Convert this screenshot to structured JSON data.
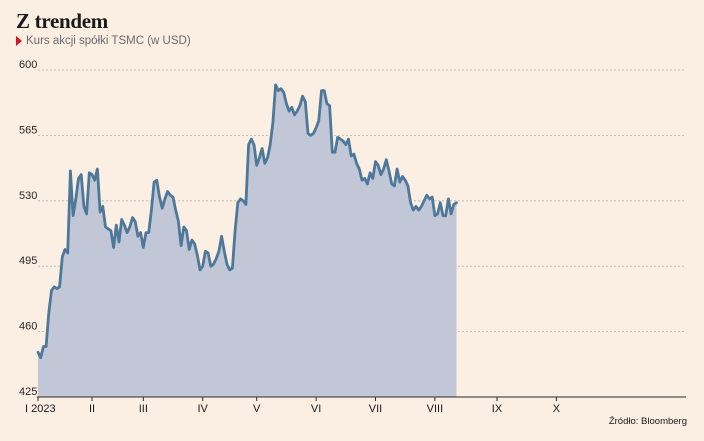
{
  "title": "Z trendem",
  "subtitle": "Kurs akcji spółki TSMC (w USD)",
  "source": "Źródło: Bloomberg",
  "colors": {
    "background": "#fbeee2",
    "line": "#4e7899",
    "area": "#c2c7d8",
    "accent_marker": "#d6171d"
  },
  "chart_data": {
    "type": "area",
    "title": "Z trendem",
    "subtitle": "Kurs akcji spółki TSMC (w USD)",
    "xlabel": "",
    "ylabel": "",
    "ylim": [
      425,
      600
    ],
    "yticks": [
      425,
      460,
      495,
      530,
      565,
      600
    ],
    "grid": "horizontal dashed",
    "x_index_range": [
      0,
      240
    ],
    "xticks": [
      {
        "label": "I 2023",
        "index": 0
      },
      {
        "label": "II",
        "index": 20
      },
      {
        "label": "III",
        "index": 39
      },
      {
        "label": "IV",
        "index": 61
      },
      {
        "label": "V",
        "index": 81
      },
      {
        "label": "VI",
        "index": 103
      },
      {
        "label": "VII",
        "index": 125
      },
      {
        "label": "VIII",
        "index": 147
      },
      {
        "label": "IX",
        "index": 170
      },
      {
        "label": "X",
        "index": 192
      }
    ],
    "series": [
      {
        "values": [
          [
            0,
            449
          ],
          [
            1,
            446
          ],
          [
            2,
            452
          ],
          [
            3,
            452
          ],
          [
            4,
            470
          ],
          [
            5,
            482
          ],
          [
            6,
            484
          ],
          [
            7,
            483
          ],
          [
            8,
            484
          ],
          [
            9,
            500
          ],
          [
            10,
            504
          ],
          [
            11,
            502
          ],
          [
            12,
            546
          ],
          [
            13,
            522
          ],
          [
            14,
            531
          ],
          [
            15,
            542
          ],
          [
            16,
            544
          ],
          [
            17,
            527
          ],
          [
            18,
            523
          ],
          [
            19,
            545
          ],
          [
            20,
            544
          ],
          [
            21,
            541
          ],
          [
            22,
            547
          ],
          [
            23,
            524
          ],
          [
            24,
            527
          ],
          [
            25,
            516
          ],
          [
            26,
            515
          ],
          [
            27,
            514
          ],
          [
            28,
            505
          ],
          [
            29,
            517
          ],
          [
            30,
            508
          ],
          [
            31,
            520
          ],
          [
            32,
            517
          ],
          [
            33,
            513
          ],
          [
            34,
            516
          ],
          [
            35,
            521
          ],
          [
            36,
            519
          ],
          [
            37,
            511
          ],
          [
            38,
            513
          ],
          [
            39,
            505
          ],
          [
            40,
            513
          ],
          [
            41,
            513
          ],
          [
            42,
            525
          ],
          [
            43,
            540
          ],
          [
            44,
            541
          ],
          [
            45,
            532
          ],
          [
            46,
            526
          ],
          [
            47,
            531
          ],
          [
            48,
            535
          ],
          [
            49,
            533
          ],
          [
            50,
            532
          ],
          [
            51,
            525
          ],
          [
            52,
            519
          ],
          [
            53,
            506
          ],
          [
            54,
            516
          ],
          [
            55,
            514
          ],
          [
            56,
            504
          ],
          [
            57,
            509
          ],
          [
            58,
            507
          ],
          [
            59,
            501
          ],
          [
            60,
            493
          ],
          [
            61,
            495
          ],
          [
            62,
            503
          ],
          [
            63,
            502
          ],
          [
            64,
            495
          ],
          [
            65,
            496
          ],
          [
            66,
            499
          ],
          [
            67,
            503
          ],
          [
            68,
            511
          ],
          [
            69,
            503
          ],
          [
            70,
            496
          ],
          [
            71,
            493
          ],
          [
            72,
            494
          ],
          [
            73,
            514
          ],
          [
            74,
            529
          ],
          [
            75,
            531
          ],
          [
            76,
            530
          ],
          [
            77,
            528
          ],
          [
            78,
            560
          ],
          [
            79,
            563
          ],
          [
            80,
            560
          ],
          [
            81,
            549
          ],
          [
            82,
            553
          ],
          [
            83,
            558
          ],
          [
            84,
            550
          ],
          [
            85,
            553
          ],
          [
            86,
            560
          ],
          [
            87,
            572
          ],
          [
            88,
            592
          ],
          [
            89,
            589
          ],
          [
            90,
            590
          ],
          [
            91,
            588
          ],
          [
            92,
            582
          ],
          [
            93,
            578
          ],
          [
            94,
            580
          ],
          [
            95,
            576
          ],
          [
            96,
            578
          ],
          [
            97,
            581
          ],
          [
            98,
            586
          ],
          [
            99,
            583
          ],
          [
            100,
            566
          ],
          [
            101,
            565
          ],
          [
            102,
            566
          ],
          [
            103,
            569
          ],
          [
            104,
            573
          ],
          [
            105,
            589
          ],
          [
            106,
            589
          ],
          [
            107,
            582
          ],
          [
            108,
            581
          ],
          [
            109,
            556
          ],
          [
            110,
            556
          ],
          [
            111,
            564
          ],
          [
            112,
            563
          ],
          [
            113,
            562
          ],
          [
            114,
            560
          ],
          [
            115,
            563
          ],
          [
            116,
            554
          ],
          [
            117,
            555
          ],
          [
            118,
            550
          ],
          [
            119,
            547
          ],
          [
            120,
            541
          ],
          [
            121,
            542
          ],
          [
            122,
            539
          ],
          [
            123,
            545
          ],
          [
            124,
            542
          ],
          [
            125,
            551
          ],
          [
            126,
            549
          ],
          [
            127,
            544
          ],
          [
            128,
            547
          ],
          [
            129,
            552
          ],
          [
            130,
            546
          ],
          [
            131,
            539
          ],
          [
            132,
            538
          ],
          [
            133,
            547
          ],
          [
            134,
            540
          ],
          [
            135,
            543
          ],
          [
            136,
            541
          ],
          [
            137,
            538
          ],
          [
            138,
            529
          ],
          [
            139,
            525
          ],
          [
            140,
            527
          ],
          [
            141,
            525
          ],
          [
            142,
            527
          ],
          [
            143,
            530
          ],
          [
            144,
            533
          ],
          [
            145,
            531
          ],
          [
            146,
            532
          ],
          [
            147,
            522
          ],
          [
            148,
            523
          ],
          [
            149,
            529
          ],
          [
            150,
            522
          ],
          [
            151,
            522
          ],
          [
            152,
            531
          ],
          [
            153,
            523
          ],
          [
            154,
            528
          ],
          [
            155,
            529
          ]
        ]
      }
    ]
  }
}
